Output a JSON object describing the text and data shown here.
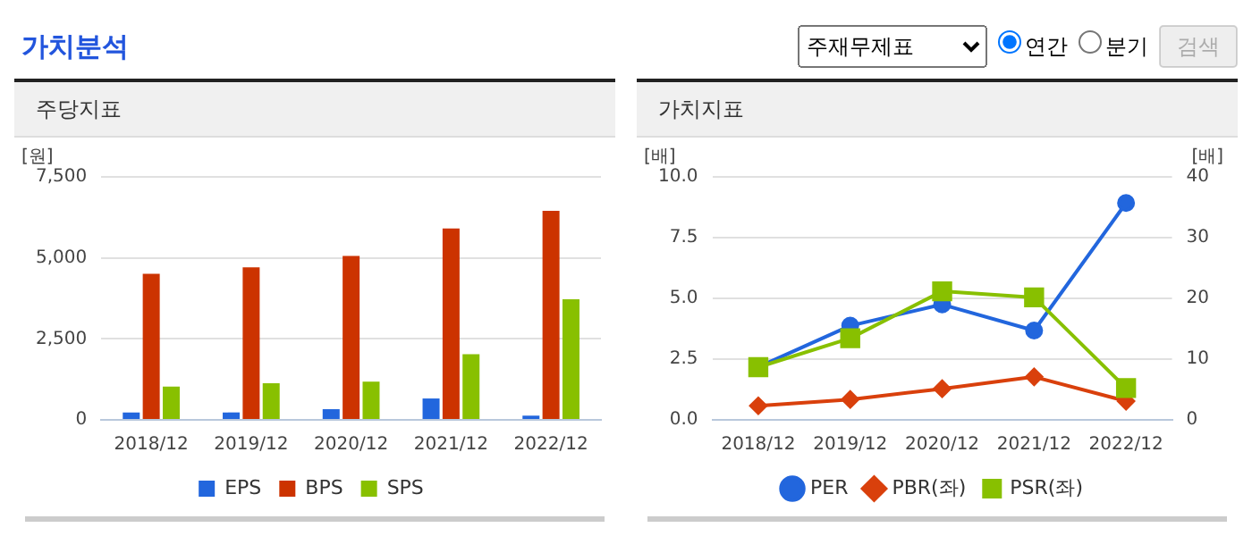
{
  "chart_data": [
    {
      "type": "other",
      "title": "가치분석",
      "annotations": [
        "주재무제표",
        "연간",
        "분기",
        "검색"
      ]
    },
    {
      "type": "bar",
      "title": "주당지표",
      "ylabel": "[원]",
      "categories": [
        "2018/12",
        "2019/12",
        "2020/12",
        "2021/12",
        "2022/12"
      ],
      "series": [
        {
          "name": "EPS",
          "color": "#2266dd",
          "values": [
            230,
            230,
            330,
            660,
            130
          ]
        },
        {
          "name": "BPS",
          "color": "#cc3300",
          "values": [
            4510,
            4710,
            5060,
            5910,
            6450
          ]
        },
        {
          "name": "SPS",
          "color": "#88c000",
          "values": [
            1030,
            1130,
            1180,
            2030,
            3720
          ]
        }
      ],
      "ylim": [
        0,
        7500
      ],
      "yticks": [
        {
          "value": 0,
          "label": "0"
        },
        {
          "value": 2500,
          "label": "2,500"
        },
        {
          "value": 5000,
          "label": "5,000"
        },
        {
          "value": 7500,
          "label": "7,500"
        }
      ],
      "grid": "y",
      "legend": "bottom"
    },
    {
      "type": "line",
      "title": "가치지표",
      "ylabel": "[배]",
      "y2label": "[배]",
      "categories": [
        "2018/12",
        "2019/12",
        "2020/12",
        "2021/12",
        "2022/12"
      ],
      "series": [
        {
          "name": "PER",
          "color": "#2266dd",
          "axis": "y2",
          "marker": "circle",
          "values": [
            8.7,
            15.5,
            19.0,
            14.7,
            35.7
          ]
        },
        {
          "name": "PBR(좌)",
          "color": "#d9400c",
          "marker": "diamond",
          "values": [
            0.58,
            0.84,
            1.28,
            1.77,
            0.77
          ]
        },
        {
          "name": "PSR(좌)",
          "color": "#88c000",
          "marker": "square",
          "values": [
            2.17,
            3.36,
            5.29,
            5.04,
            1.31
          ]
        }
      ],
      "ylim": [
        0,
        10
      ],
      "yticks": [
        {
          "value": 0,
          "label": "0.0"
        },
        {
          "value": 2.5,
          "label": "2.5"
        },
        {
          "value": 5,
          "label": "5.0"
        },
        {
          "value": 7.5,
          "label": "7.5"
        },
        {
          "value": 10,
          "label": "10.0"
        }
      ],
      "y2lim": [
        0,
        40
      ],
      "y2ticks": [
        0,
        10,
        20,
        30,
        40
      ],
      "grid": "y",
      "legend": "bottom"
    }
  ]
}
